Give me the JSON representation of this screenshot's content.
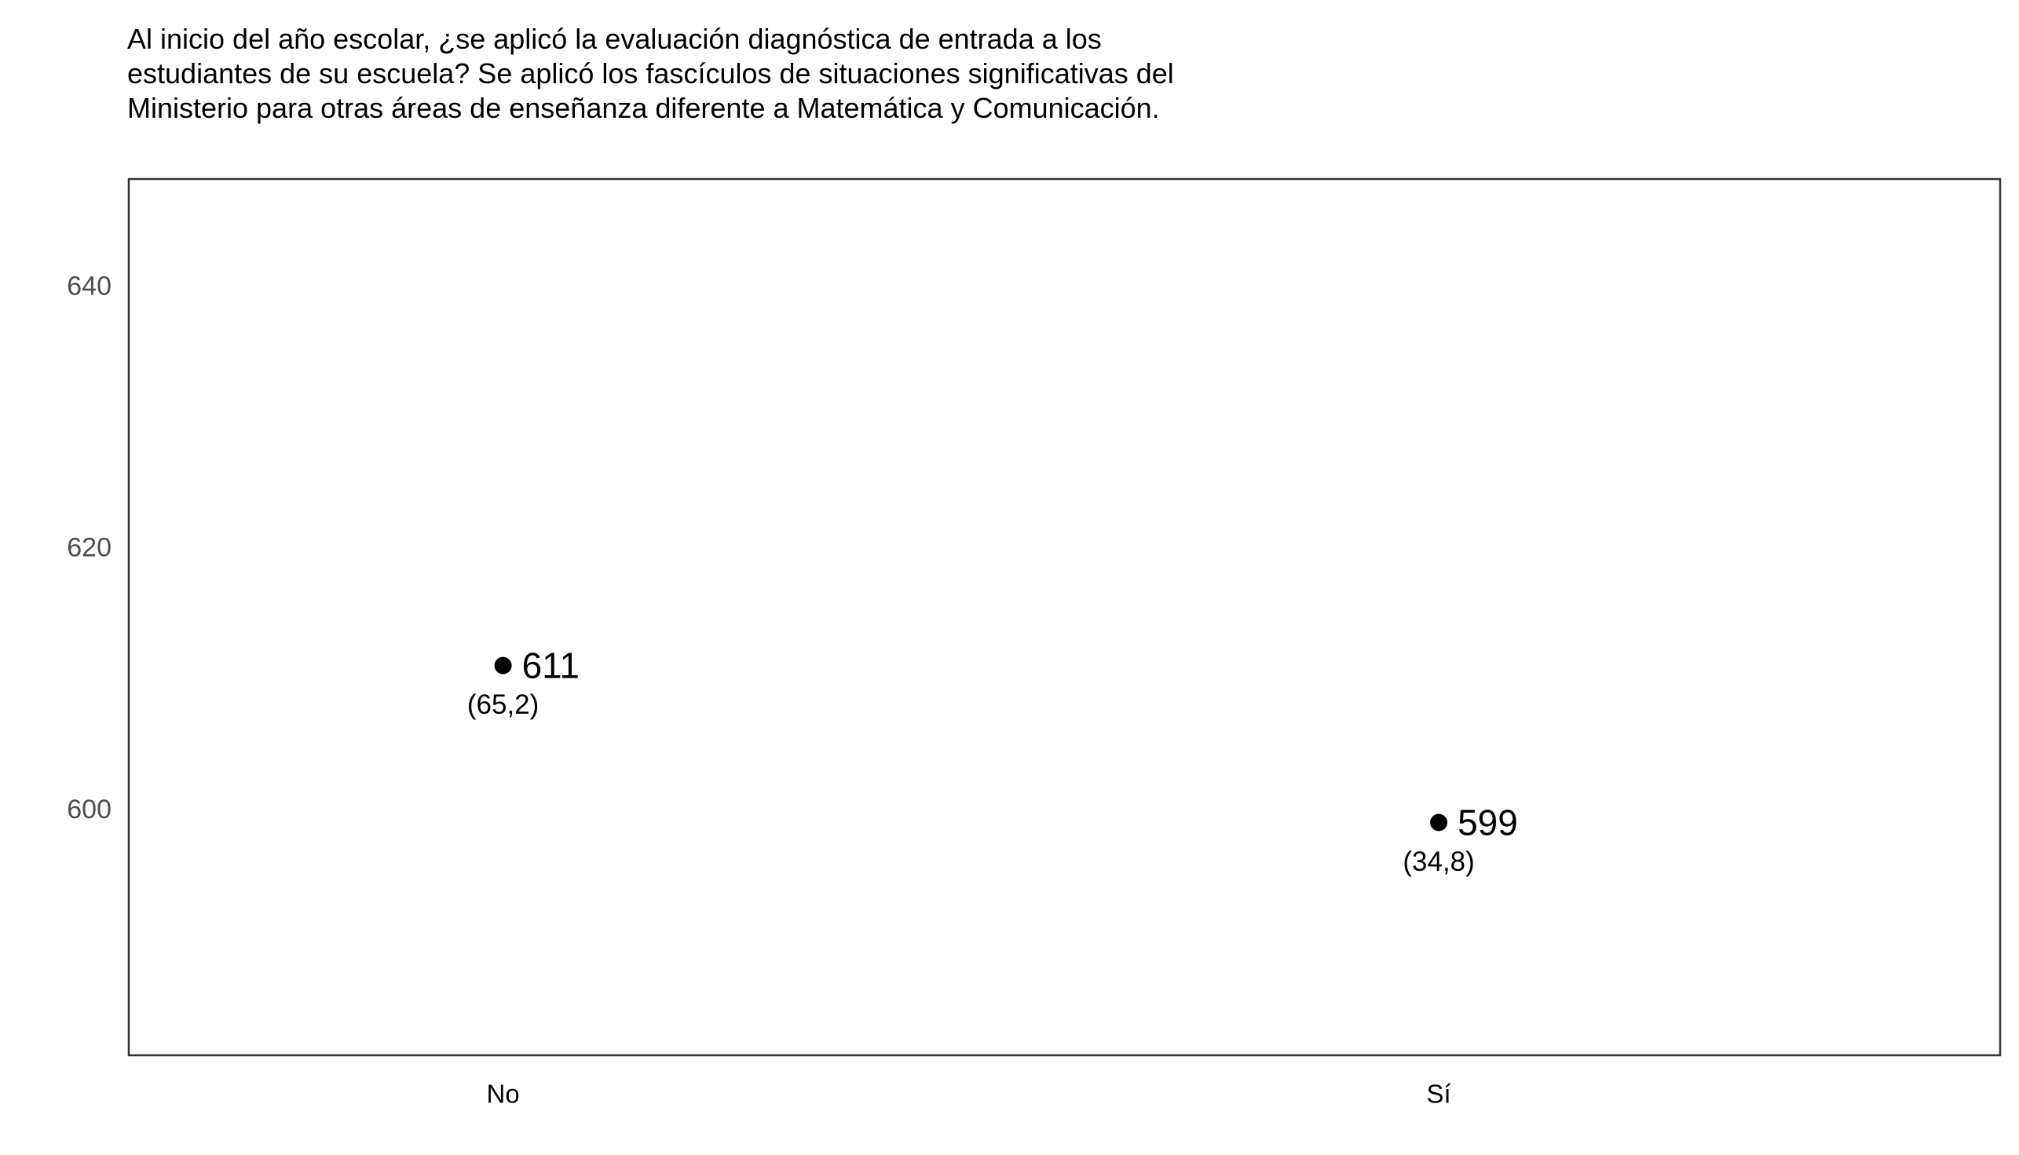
{
  "chart_data": {
    "type": "scatter",
    "title": "Al inicio del año escolar, ¿se aplicó la evaluación diagnóstica de entrada a los estudiantes de su escuela? Se aplicó los fascículos de situaciones significativas del Ministerio para otras áreas de enseñanza diferente a Matemática y Comunicación.",
    "xlabel": "",
    "ylabel": "",
    "categories": [
      "No",
      "Sí"
    ],
    "values": [
      611,
      599
    ],
    "value_labels": [
      "611",
      "599"
    ],
    "sub_labels": [
      "(65,2)",
      "(34,8)"
    ],
    "y_ticks": [
      600,
      620,
      640
    ],
    "y_tick_labels": [
      "600",
      "620",
      "640"
    ],
    "ylim": [
      581.2,
      648.2
    ],
    "grid": false,
    "legend": "none",
    "colors": {
      "point": "#000000",
      "axis_text": "#4d4d4d",
      "frame": "#333333"
    }
  }
}
